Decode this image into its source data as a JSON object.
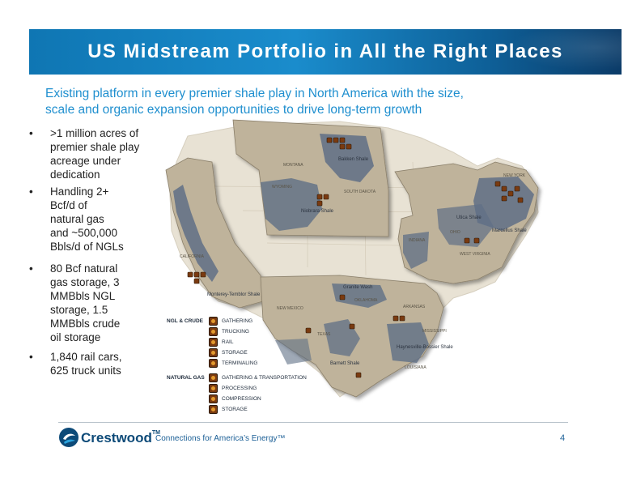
{
  "title": "US Midstream Portfolio in All the Right Places",
  "subtitle_lines": [
    "Existing platform in every premier shale play in North America with the size,",
    "scale and organic expansion opportunities to drive long-term growth"
  ],
  "bullets": [
    {
      "lines": [
        ">1 million acres of",
        "premier shale play",
        "acreage under",
        "dedication"
      ]
    },
    {
      "lines": [
        "Handling 2+",
        "Bcf/d of",
        "natural gas",
        "and ~500,000",
        "Bbls/d of NGLs"
      ]
    },
    {
      "lines": [
        "80 Bcf natural",
        "gas storage, 3",
        "MMBbls NGL",
        "storage, 1.5",
        "MMBbls crude",
        "oil storage"
      ]
    },
    {
      "lines": [
        "1,840 rail cars,",
        "625 truck units"
      ]
    }
  ],
  "bullet_symbol": "•",
  "map": {
    "shale_labels": {
      "bakken": "Bakken Shale",
      "niobrara": "Niobrara Shale",
      "monterey": "Monterey-Temblor Shale",
      "marcellus": "Marcellus Shale",
      "utica": "Utica Shale",
      "granite_wash": "Granite Wash",
      "barnett": "Barnett Shale",
      "haynesville": "Haynesville-Bossier Shale"
    },
    "state_labels": {
      "montana": "MONTANA",
      "south_dakota": "SOUTH DAKOTA",
      "wyoming": "WYOMING",
      "indiana": "INDIANA",
      "ohio": "OHIO",
      "west_virginia": "WEST VIRGINIA",
      "new_york": "NEW YORK",
      "texas": "TEXAS",
      "new_mexico": "NEW MEXICO",
      "oklahoma": "OKLAHOMA",
      "arkansas": "ARKANSAS",
      "louisiana": "LOUISIANA",
      "mississippi": "MISSISSIPPI",
      "california": "CALIFORNIA"
    },
    "colors": {
      "land": "#bfb39b",
      "shale": "#5f6f86",
      "region_edge": "#8a7f6a",
      "icon": "#7a3a10"
    }
  },
  "legend": {
    "ngl_crude_heading": "NGL & CRUDE",
    "ngl_crude_items": [
      "GATHERING",
      "TRUCKING",
      "RAIL",
      "STORAGE",
      "TERMINALING"
    ],
    "natural_gas_heading": "NATURAL GAS",
    "natural_gas_items": [
      "GATHERING & TRANSPORTATION",
      "PROCESSING",
      "COMPRESSION",
      "STORAGE"
    ]
  },
  "footer": {
    "logo_text": "Crestwood",
    "logo_tm": "TM",
    "tagline": "Connections for America’s Energy™",
    "page_number": "4"
  }
}
